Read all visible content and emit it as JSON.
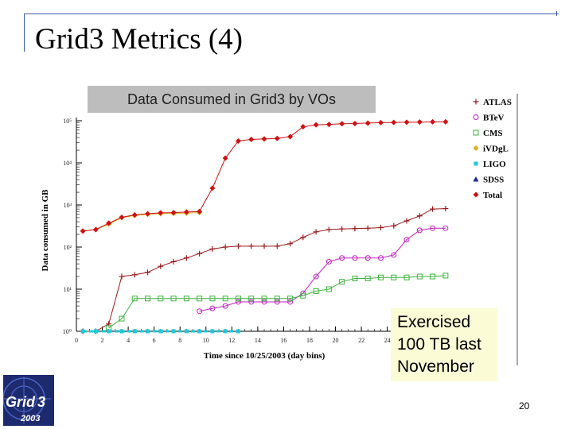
{
  "slide": {
    "title": "Grid3 Metrics (4)",
    "page_number": "20"
  },
  "callout": {
    "line1": "Exercised",
    "line2": "100 TB last",
    "line3": "November"
  },
  "logo": {
    "text_top": "Grid",
    "text_num": "3",
    "text_year": "2003"
  },
  "chart_data": {
    "type": "line",
    "title": "Data Consumed in Grid3 by VOs",
    "xlabel": "Time since 10/25/2003 (day bins)",
    "ylabel": "Data consumed in GB",
    "xlim": [
      0,
      29
    ],
    "ylim": [
      1,
      100000
    ],
    "log_y": true,
    "x_ticks": [
      0,
      2,
      4,
      6,
      8,
      10,
      12,
      14,
      16,
      18,
      20,
      22,
      24
    ],
    "y_ticks": [
      {
        "value": 1,
        "label": "10⁰"
      },
      {
        "value": 10,
        "label": "10¹"
      },
      {
        "value": 100,
        "label": "10²"
      },
      {
        "value": 1000,
        "label": "10³"
      },
      {
        "value": 10000,
        "label": "10⁴"
      },
      {
        "value": 100000,
        "label": "10⁵"
      }
    ],
    "legend_position": "right",
    "series": [
      {
        "name": "ATLAS",
        "marker": "plus",
        "color": "#9b1b1b",
        "x": [
          0.5,
          1.5,
          2.5,
          3.5,
          4.5,
          5.5,
          6.5,
          7.5,
          8.5,
          9.5,
          10.5,
          11.5,
          12.5,
          13.5,
          14.5,
          15.5,
          16.5,
          17.5,
          18.5,
          19.5,
          20.5,
          21.5,
          22.5,
          23.5,
          24.5,
          25.5,
          26.5,
          27.5,
          28.5
        ],
        "y": [
          1,
          1,
          1.5,
          20,
          22,
          25,
          35,
          45,
          55,
          70,
          90,
          100,
          105,
          105,
          105,
          105,
          120,
          170,
          230,
          260,
          270,
          275,
          280,
          290,
          320,
          420,
          550,
          800,
          820
        ]
      },
      {
        "name": "BTeV",
        "marker": "circle",
        "color": "#c020c0",
        "x": [
          9.5,
          10.5,
          11.5,
          12.5,
          13.5,
          14.5,
          15.5,
          16.5,
          17.5,
          18.5,
          19.5,
          20.5,
          21.5,
          22.5,
          23.5,
          24.5,
          25.5,
          26.5,
          27.5,
          28.5
        ],
        "y": [
          3,
          3.5,
          4,
          5,
          5,
          5,
          5,
          5,
          8,
          20,
          45,
          55,
          55,
          55,
          55,
          65,
          150,
          250,
          280,
          280
        ]
      },
      {
        "name": "CMS",
        "marker": "square",
        "color": "#3cb43c",
        "x": [
          2.5,
          3.5,
          4.5,
          5.5,
          6.5,
          7.5,
          8.5,
          9.5,
          10.5,
          11.5,
          12.5,
          13.5,
          14.5,
          15.5,
          16.5,
          17.5,
          18.5,
          19.5,
          20.5,
          21.5,
          22.5,
          23.5,
          24.5,
          25.5,
          26.5,
          27.5,
          28.5
        ],
        "y": [
          1.2,
          2,
          6,
          6,
          6,
          6,
          6,
          6,
          6,
          6,
          6,
          6,
          6,
          6,
          6,
          7,
          9,
          10,
          15,
          18,
          18,
          19,
          19,
          19,
          20,
          20,
          21
        ]
      },
      {
        "name": "iVDgL",
        "marker": "diamond",
        "color": "#d4b020",
        "x": [
          0.5,
          1.5,
          2.5,
          3.5,
          4.5,
          5.5,
          6.5,
          7.5,
          8.5,
          9.5
        ],
        "y": [
          240,
          260,
          350,
          500,
          560,
          600,
          620,
          630,
          640,
          660
        ]
      },
      {
        "name": "LIGO",
        "marker": "square-filled",
        "color": "#20c8d8",
        "x": [
          0.5,
          1.5,
          2.5,
          3.5,
          4.5,
          5.5,
          6.5,
          7.5,
          8.5,
          9.5,
          10.5,
          11.5,
          12.5
        ],
        "y": [
          1,
          1,
          1,
          1,
          1,
          1,
          1,
          1,
          1,
          1,
          1,
          1,
          1
        ]
      },
      {
        "name": "SDSS",
        "marker": "triangle",
        "color": "#1a2a9a",
        "x": [],
        "y": []
      },
      {
        "name": "Total",
        "marker": "diamond",
        "color": "#d01010",
        "x": [
          0.5,
          1.5,
          2.5,
          3.5,
          4.5,
          5.5,
          6.5,
          7.5,
          8.5,
          9.5,
          10.5,
          11.5,
          12.5,
          13.5,
          14.5,
          15.5,
          16.5,
          17.5,
          18.5,
          19.5,
          20.5,
          21.5,
          22.5,
          23.5,
          24.5,
          25.5,
          26.5,
          27.5,
          28.5
        ],
        "y": [
          240,
          260,
          370,
          510,
          580,
          620,
          650,
          660,
          680,
          700,
          2500,
          13000,
          33000,
          36000,
          37000,
          38000,
          42000,
          72000,
          80000,
          82000,
          85000,
          86000,
          88000,
          90000,
          91000,
          92000,
          93000,
          94000,
          94000
        ]
      }
    ]
  }
}
